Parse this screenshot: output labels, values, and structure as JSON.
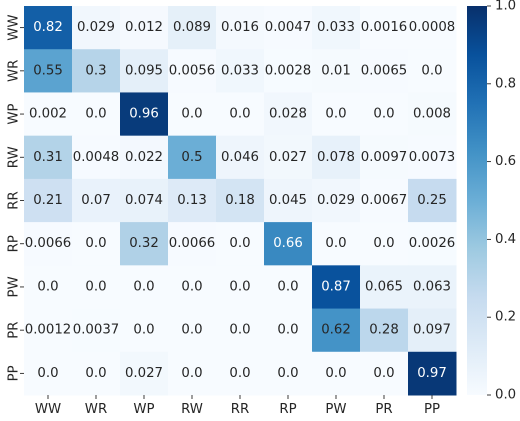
{
  "chart_data": {
    "type": "heatmap",
    "title": "",
    "xlabel": "",
    "ylabel": "",
    "x_categories": [
      "WW",
      "WR",
      "WP",
      "RW",
      "RR",
      "RP",
      "PW",
      "PR",
      "PP"
    ],
    "y_categories": [
      "WW",
      "WR",
      "WP",
      "RW",
      "RR",
      "RP",
      "PW",
      "PR",
      "PP"
    ],
    "values": [
      [
        0.82,
        0.029,
        0.012,
        0.089,
        0.016,
        0.0047,
        0.033,
        0.0016,
        0.0008
      ],
      [
        0.55,
        0.3,
        0.095,
        0.0056,
        0.033,
        0.0028,
        0.01,
        0.0065,
        0.0
      ],
      [
        0.002,
        0.0,
        0.96,
        0.0,
        0.0,
        0.028,
        0.0,
        0.0,
        0.008
      ],
      [
        0.31,
        0.0048,
        0.022,
        0.5,
        0.046,
        0.027,
        0.078,
        0.0097,
        0.0073
      ],
      [
        0.21,
        0.07,
        0.074,
        0.13,
        0.18,
        0.045,
        0.029,
        0.0067,
        0.25
      ],
      [
        0.0066,
        0.0,
        0.32,
        0.0066,
        0.0,
        0.66,
        0.0,
        0.0,
        0.0026
      ],
      [
        0.0,
        0.0,
        0.0,
        0.0,
        0.0,
        0.0,
        0.87,
        0.065,
        0.063
      ],
      [
        0.0012,
        0.0037,
        0.0,
        0.0,
        0.0,
        0.0,
        0.62,
        0.28,
        0.097
      ],
      [
        0.0,
        0.0,
        0.027,
        0.0,
        0.0,
        0.0,
        0.0,
        0.0,
        0.97
      ]
    ],
    "cell_labels": [
      [
        "0.82",
        "0.029",
        "0.012",
        "0.089",
        "0.016",
        "0.0047",
        "0.033",
        "0.0016",
        "0.0008"
      ],
      [
        "0.55",
        "0.3",
        "0.095",
        "0.0056",
        "0.033",
        "0.0028",
        "0.01",
        "0.0065",
        "0.0"
      ],
      [
        "0.002",
        "0.0",
        "0.96",
        "0.0",
        "0.0",
        "0.028",
        "0.0",
        "0.0",
        "0.008"
      ],
      [
        "0.31",
        "0.0048",
        "0.022",
        "0.5",
        "0.046",
        "0.027",
        "0.078",
        "0.0097",
        "0.0073"
      ],
      [
        "0.21",
        "0.07",
        "0.074",
        "0.13",
        "0.18",
        "0.045",
        "0.029",
        "0.0067",
        "0.25"
      ],
      [
        "0.0066",
        "0.0",
        "0.32",
        "0.0066",
        "0.0",
        "0.66",
        "0.0",
        "0.0",
        "0.0026"
      ],
      [
        "0.0",
        "0.0",
        "0.0",
        "0.0",
        "0.0",
        "0.0",
        "0.87",
        "0.065",
        "0.063"
      ],
      [
        "0.0012",
        "0.0037",
        "0.0",
        "0.0",
        "0.0",
        "0.0",
        "0.62",
        "0.28",
        "0.097"
      ],
      [
        "0.0",
        "0.0",
        "0.027",
        "0.0",
        "0.0",
        "0.0",
        "0.0",
        "0.0",
        "0.97"
      ]
    ],
    "colorbar": {
      "range": [
        0.0,
        1.0
      ],
      "ticks": [
        0.0,
        0.2,
        0.4,
        0.6,
        0.8,
        1.0
      ],
      "tick_labels": [
        "0.0",
        "0.2",
        "0.4",
        "0.6",
        "0.8",
        "1.0"
      ],
      "placement": "right"
    },
    "colormap": "Blues",
    "colormap_stops": [
      "#f7fbff",
      "#deebf7",
      "#c6dbef",
      "#9ecae1",
      "#6baed6",
      "#4292c6",
      "#2171b5",
      "#08519c",
      "#08306b"
    ],
    "text_colors": {
      "dark": "#262626",
      "light": "#ffffff"
    },
    "grid": false
  }
}
